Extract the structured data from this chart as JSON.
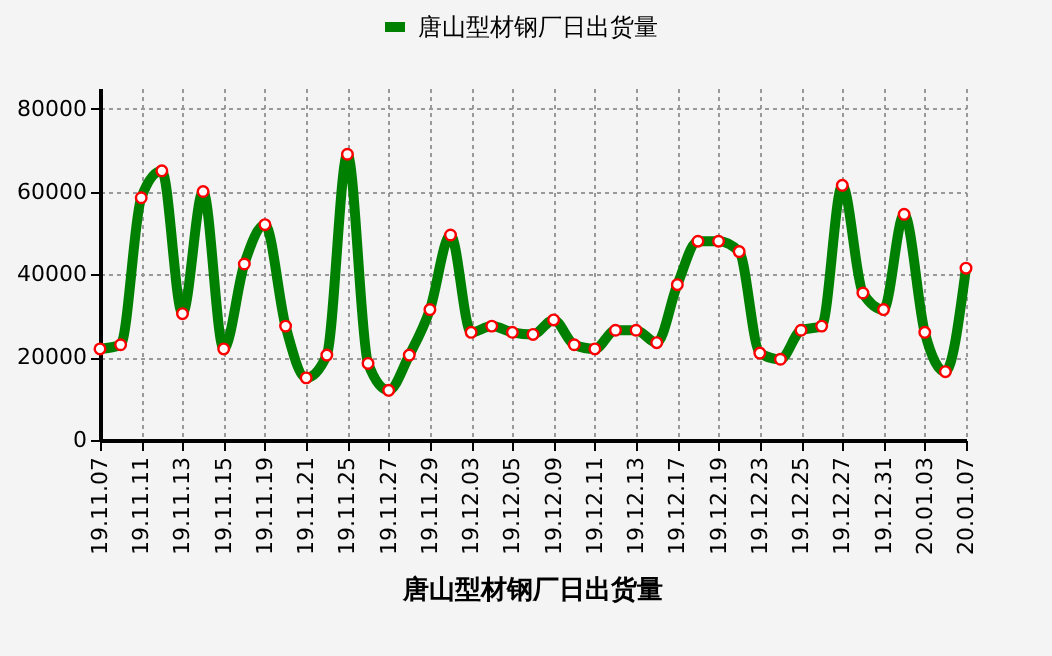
{
  "chart_data": {
    "type": "line",
    "title": "唐山型材钢厂日出货量",
    "categories": [
      "19.11.07",
      null,
      "19.11.11",
      null,
      "19.11.13",
      null,
      "19.11.15",
      null,
      "19.11.19",
      null,
      "19.11.21",
      null,
      "19.11.25",
      null,
      "19.11.27",
      null,
      "19.11.29",
      null,
      "19.12.03",
      null,
      "19.12.05",
      null,
      "19.12.09",
      null,
      "19.12.11",
      null,
      "19.12.13",
      null,
      "19.12.17",
      null,
      "19.12.19",
      null,
      "19.12.23",
      null,
      "19.12.25",
      null,
      "19.12.27",
      null,
      "19.12.31",
      null,
      "20.01.03",
      null,
      "20.01.07"
    ],
    "series": [
      {
        "name": "唐山型材钢厂日出货量",
        "color": "#008000",
        "values": [
          22000,
          23000,
          58500,
          65000,
          30500,
          60000,
          22000,
          42500,
          52000,
          27500,
          15000,
          20500,
          69000,
          18500,
          12000,
          20500,
          31500,
          49500,
          26000,
          27500,
          26000,
          25500,
          29000,
          23000,
          22000,
          26500,
          26500,
          23500,
          37500,
          48000,
          48000,
          45500,
          21000,
          19500,
          26500,
          27500,
          61500,
          35500,
          31500,
          54500,
          26000,
          16500,
          41500
        ]
      }
    ],
    "ylim": [
      0,
      85000
    ],
    "yticks": [
      0,
      20000,
      40000,
      60000,
      80000
    ],
    "grid": true,
    "legend": "top",
    "marker": "circle",
    "line_style": "solid"
  }
}
